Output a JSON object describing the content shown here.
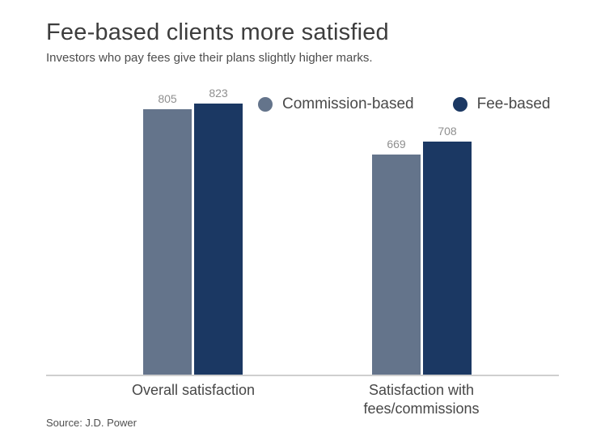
{
  "header": {
    "title": "Fee-based clients more satisfied",
    "subtitle": "Investors who pay fees give their plans slightly higher marks."
  },
  "legend": {
    "items": [
      {
        "label": "Commission-based",
        "color": "#64748b"
      },
      {
        "label": "Fee-based",
        "color": "#1b3863"
      }
    ]
  },
  "chart_data": {
    "type": "bar",
    "title": "Fee-based clients more satisfied",
    "subtitle": "Investors who pay fees give their plans slightly higher marks.",
    "categories": [
      "Overall satisfaction",
      "Satisfaction with\nfees/commissions"
    ],
    "series": [
      {
        "name": "Commission-based",
        "color": "#64748b",
        "values": [
          805,
          669
        ]
      },
      {
        "name": "Fee-based",
        "color": "#1b3863",
        "values": [
          823,
          708
        ]
      }
    ],
    "ylim": [
      0,
      823
    ],
    "grid": false,
    "legend_position": "top-right",
    "value_labels": true,
    "axis_line_color": "#cfcfcf"
  },
  "footer": {
    "source": "Source: J.D. Power"
  }
}
